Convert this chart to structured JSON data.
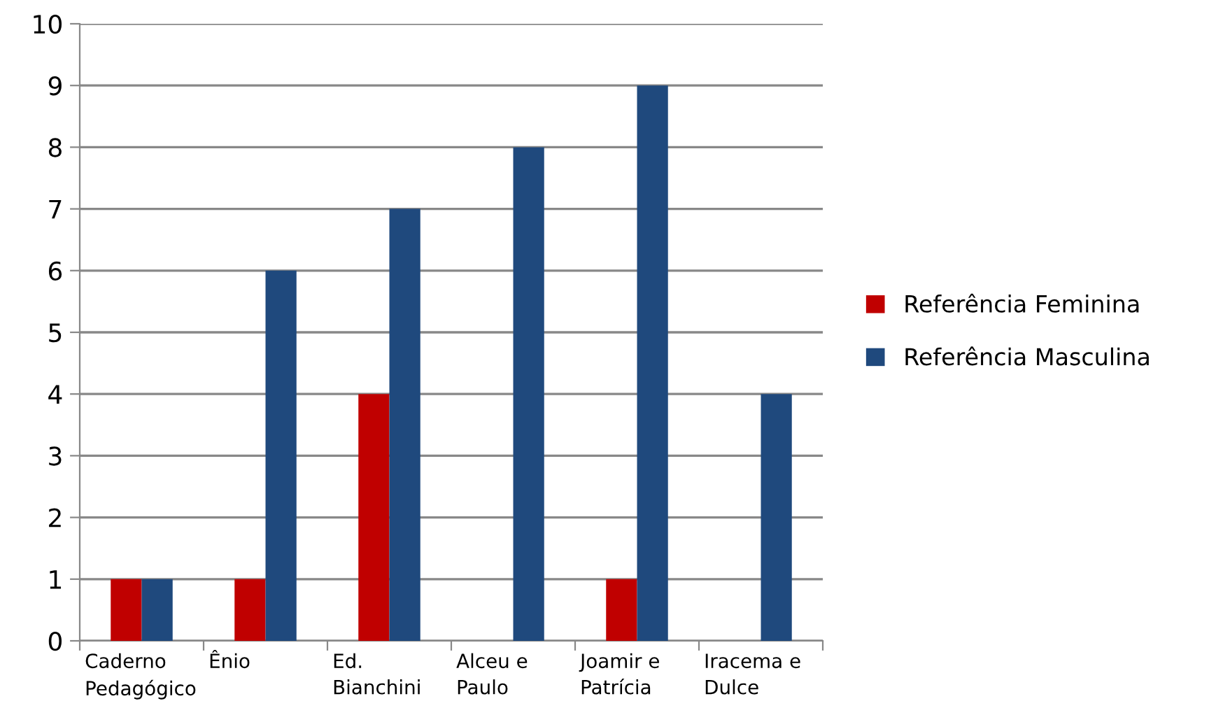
{
  "chart_data": {
    "type": "bar",
    "categories": [
      "Caderno\nPedagógico",
      "Ênio",
      "Ed.\nBianchini",
      "Alceu e\nPaulo",
      "Joamir e\nPatrícia",
      "Iracema e\nDulce"
    ],
    "series": [
      {
        "name": "Referência Feminina",
        "color": "#c00000",
        "values": [
          1,
          1,
          4,
          0,
          1,
          0
        ]
      },
      {
        "name": "Referência Masculina",
        "color": "#1f497d",
        "values": [
          1,
          6,
          7,
          8,
          9,
          4
        ]
      }
    ],
    "ylim": [
      0,
      10
    ],
    "yticks": [
      0,
      1,
      2,
      3,
      4,
      5,
      6,
      7,
      8,
      9,
      10
    ],
    "grid": "y",
    "legend": "right"
  }
}
